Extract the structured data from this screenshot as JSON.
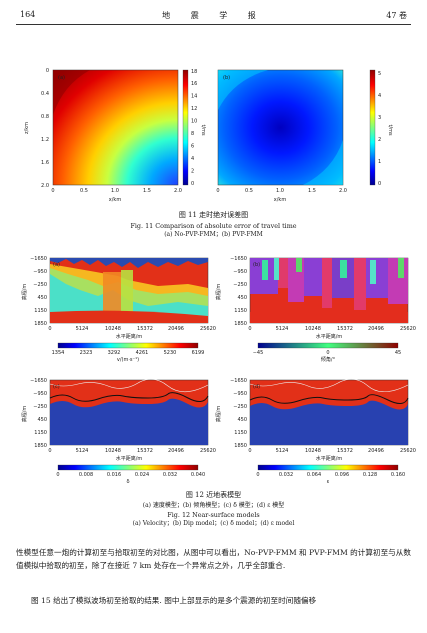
{
  "header": {
    "page": "164",
    "journal": "地 震 学 报",
    "volume": "47 卷"
  },
  "fig11": {
    "caption_cn": "图 11 走时绝对误差图",
    "caption_en": "Fig. 11 Comparison of absolute error of travel time",
    "subcaption": "(a) No-PVP-FMM；(b) PVP-FMM",
    "xlabel": "x/km",
    "ylabel": "z/km",
    "xticks": [
      "0",
      "0.5",
      "1.0",
      "1.5",
      "2.0"
    ],
    "yticks": [
      "0",
      "0.4",
      "0.8",
      "1.2",
      "1.6",
      "2.0"
    ],
    "a": {
      "label": "(a)",
      "cbar_unit": "t/ms",
      "cbar_ticks": [
        "0",
        "2",
        "4",
        "6",
        "8",
        "10",
        "12",
        "14",
        "16",
        "18"
      ]
    },
    "b": {
      "label": "(b)",
      "cbar_unit": "t/ms",
      "cbar_ticks": [
        "0",
        "1",
        "2",
        "3",
        "4",
        "5"
      ]
    }
  },
  "fig12": {
    "caption_cn": "图 12 近地表模型",
    "subcaption_cn": "(a) 速度模型；(b) 倾角模型；(c) δ 模型；(d) ε 模型",
    "caption_en": "Fig. 12 Near-surface models",
    "subcaption_en": "(a) Velocity；(b) Dip model；(c) δ model；(d) ε model",
    "xlabel": "水平距离/m",
    "ylabel": "高程/m",
    "xticks": [
      "0",
      "5124",
      "10248",
      "15372",
      "20496",
      "25620"
    ],
    "yticks": [
      "−1650",
      "−950",
      "−250",
      "450",
      "1150",
      "1850"
    ],
    "a": {
      "label": "(a)",
      "cbar_label": "v/(m·s⁻¹)",
      "cbar_ticks": [
        "1354",
        "2323",
        "3292",
        "4261",
        "5230",
        "6199"
      ]
    },
    "b": {
      "label": "(b)",
      "cbar_label": "倾角/°",
      "cbar_ticks": [
        "−45",
        "0",
        "45"
      ]
    },
    "c": {
      "label": "(c)",
      "cbar_label": "δ",
      "cbar_ticks": [
        "0",
        "0.008",
        "0.016",
        "0.024",
        "0.032",
        "0.040"
      ]
    },
    "d": {
      "label": "(d)",
      "cbar_label": "ε",
      "cbar_ticks": [
        "0",
        "0.032",
        "0.064",
        "0.096",
        "0.128",
        "0.160"
      ]
    }
  },
  "body": {
    "para1": "性模型任意一炮的计算初至与拾取初至的对比图，从图中可以看出，No-PVP-FMM 和 PVP-FMM 的计算初至与从数值模拟中拾取的初至，除了在接近 7 km 处存在一个异常点之外，几乎全部重合.",
    "para2": "图 15 给出了模拟波场初至拾取的结果. 图中上部显示的是多个震源的初至时间随偏移"
  },
  "colors": {
    "jet_low": "#00008f",
    "jet_high": "#8f0000",
    "panel_red": "#ee3322",
    "panel_blue": "#2b3fb0"
  }
}
